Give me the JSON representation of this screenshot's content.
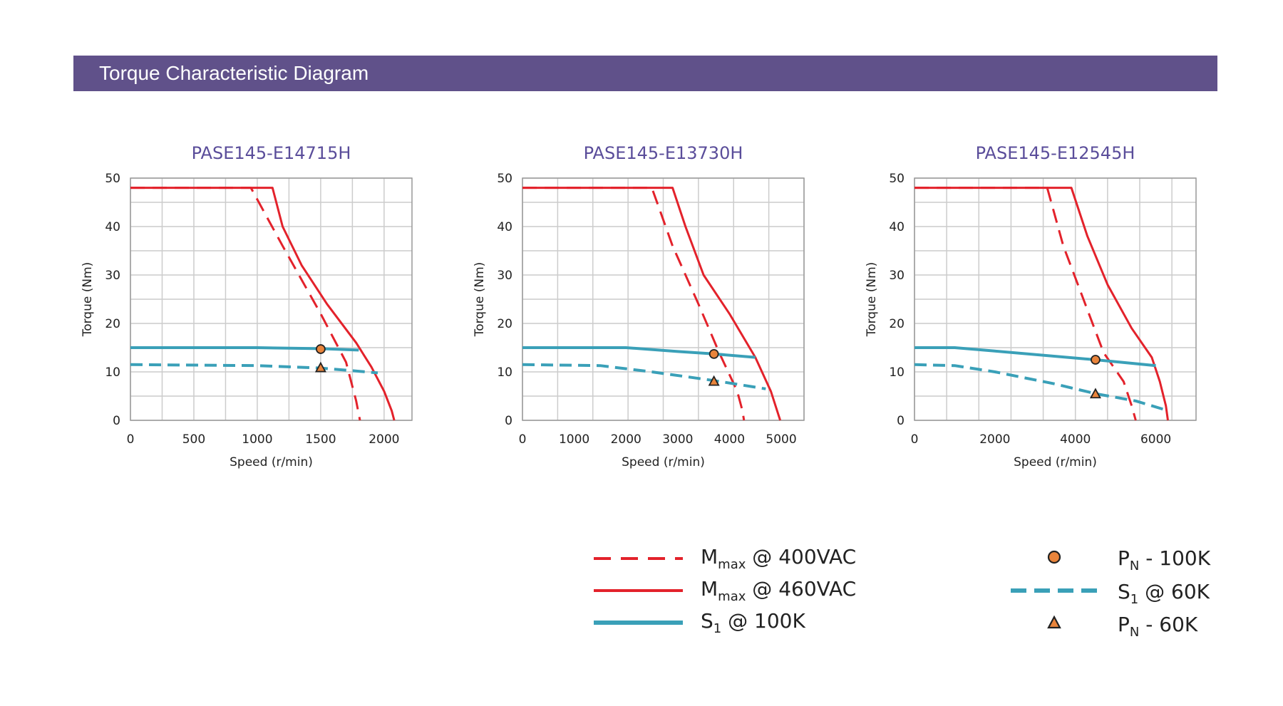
{
  "header": {
    "title": "Torque Characteristic Diagram",
    "color": "#60518a"
  },
  "colors": {
    "mmax": "#e3222b",
    "s1": "#3aa0b8",
    "title": "#5a4d9a",
    "marker_fill": "#e9843b",
    "grid": "#cccccc",
    "axis_text": "#222222"
  },
  "legend": {
    "mmax400": {
      "sym": "M",
      "sub": "max",
      "rest": " @ 400VAC"
    },
    "mmax460": {
      "sym": "M",
      "sub": "max",
      "rest": " @ 460VAC"
    },
    "s1_100k": {
      "sym": "S",
      "sub": "1",
      "rest": " @ 100K"
    },
    "pn_100k": {
      "sym": "P",
      "sub": "N",
      "rest": " - 100K"
    },
    "s1_60k": {
      "sym": "S",
      "sub": "1",
      "rest": " @ 60K"
    },
    "pn_60k": {
      "sym": "P",
      "sub": "N",
      "rest": " - 60K"
    }
  },
  "chart_data": [
    {
      "type": "line",
      "title": "PASE145-E14715H",
      "xlabel": "Speed (r/min)",
      "ylabel": "Torque (Nm)",
      "xlim": [
        0,
        2220
      ],
      "ylim": [
        0,
        50
      ],
      "xticks": [
        0,
        500,
        1000,
        1500,
        2000
      ],
      "yticks": [
        0,
        10,
        20,
        30,
        40,
        50
      ],
      "xgrid_step": 250,
      "ygrid_step": 5,
      "series": [
        {
          "key": "mmax400",
          "style": "dashed-red",
          "points": [
            [
              0,
              48
            ],
            [
              950,
              48
            ],
            [
              1200,
              36
            ],
            [
              1500,
              22
            ],
            [
              1700,
              12
            ],
            [
              1780,
              4
            ],
            [
              1810,
              0
            ]
          ]
        },
        {
          "key": "mmax460",
          "style": "solid-red",
          "points": [
            [
              0,
              48
            ],
            [
              1120,
              48
            ],
            [
              1200,
              40
            ],
            [
              1350,
              32
            ],
            [
              1550,
              24
            ],
            [
              1780,
              16
            ],
            [
              1900,
              11
            ],
            [
              2000,
              6
            ],
            [
              2060,
              2
            ],
            [
              2080,
              0
            ]
          ]
        },
        {
          "key": "s1_100k",
          "style": "solid-blue",
          "points": [
            [
              0,
              15
            ],
            [
              1000,
              15
            ],
            [
              1500,
              14.8
            ],
            [
              1800,
              14.5
            ]
          ]
        },
        {
          "key": "s1_60k",
          "style": "dashed-blue",
          "points": [
            [
              0,
              11.5
            ],
            [
              1000,
              11.3
            ],
            [
              1500,
              10.8
            ],
            [
              1950,
              9.8
            ]
          ]
        }
      ],
      "markers": [
        {
          "key": "pn_100k",
          "shape": "circle",
          "x": 1500,
          "y": 14.7
        },
        {
          "key": "pn_60k",
          "shape": "triangle",
          "x": 1500,
          "y": 10.8
        }
      ]
    },
    {
      "type": "line",
      "title": "PASE145-E13730H",
      "xlabel": "Speed (r/min)",
      "ylabel": "Torque (Nm)",
      "xlim": [
        0,
        5440
      ],
      "ylim": [
        0,
        50
      ],
      "xticks": [
        0,
        1000,
        2000,
        3000,
        4000,
        5000
      ],
      "yticks": [
        0,
        10,
        20,
        30,
        40,
        50
      ],
      "xgrid_step": 680,
      "ygrid_step": 5,
      "series": [
        {
          "key": "mmax400",
          "style": "dashed-red",
          "points": [
            [
              0,
              48
            ],
            [
              2500,
              48
            ],
            [
              2900,
              36
            ],
            [
              3400,
              24
            ],
            [
              3800,
              14
            ],
            [
              4150,
              6
            ],
            [
              4250,
              2
            ],
            [
              4280,
              0
            ]
          ]
        },
        {
          "key": "mmax460",
          "style": "solid-red",
          "points": [
            [
              0,
              48
            ],
            [
              2900,
              48
            ],
            [
              3150,
              40
            ],
            [
              3500,
              30
            ],
            [
              4000,
              22
            ],
            [
              4500,
              13
            ],
            [
              4800,
              6
            ],
            [
              4950,
              1
            ],
            [
              4980,
              0
            ]
          ]
        },
        {
          "key": "s1_100k",
          "style": "solid-blue",
          "points": [
            [
              0,
              15
            ],
            [
              2000,
              15
            ],
            [
              3000,
              14.2
            ],
            [
              3700,
              13.7
            ],
            [
              4500,
              13
            ]
          ]
        },
        {
          "key": "s1_60k",
          "style": "dashed-blue",
          "points": [
            [
              0,
              11.5
            ],
            [
              1500,
              11.3
            ],
            [
              2500,
              10
            ],
            [
              3700,
              8.2
            ],
            [
              4700,
              6.5
            ]
          ]
        }
      ],
      "markers": [
        {
          "key": "pn_100k",
          "shape": "circle",
          "x": 3700,
          "y": 13.7
        },
        {
          "key": "pn_60k",
          "shape": "triangle",
          "x": 3700,
          "y": 8.0
        }
      ]
    },
    {
      "type": "line",
      "title": "PASE145-E12545H",
      "xlabel": "Speed (r/min)",
      "ylabel": "Torque (Nm)",
      "xlim": [
        0,
        7000
      ],
      "ylim": [
        0,
        50
      ],
      "xticks": [
        0,
        2000,
        4000,
        6000
      ],
      "yticks": [
        0,
        10,
        20,
        30,
        40,
        50
      ],
      "xgrid_step": 800,
      "ygrid_step": 5,
      "series": [
        {
          "key": "mmax400",
          "style": "dashed-red",
          "points": [
            [
              0,
              48
            ],
            [
              3300,
              48
            ],
            [
              3700,
              36
            ],
            [
              4200,
              25
            ],
            [
              4700,
              14
            ],
            [
              5200,
              8
            ],
            [
              5400,
              3
            ],
            [
              5500,
              0
            ]
          ]
        },
        {
          "key": "mmax460",
          "style": "solid-red",
          "points": [
            [
              0,
              48
            ],
            [
              3900,
              48
            ],
            [
              4300,
              38
            ],
            [
              4800,
              28
            ],
            [
              5400,
              19
            ],
            [
              5900,
              13
            ],
            [
              6100,
              8
            ],
            [
              6250,
              3
            ],
            [
              6300,
              0
            ]
          ]
        },
        {
          "key": "s1_100k",
          "style": "solid-blue",
          "points": [
            [
              0,
              15
            ],
            [
              1000,
              15
            ],
            [
              2000,
              14.3
            ],
            [
              4500,
              12.5
            ],
            [
              6000,
              11.3
            ]
          ]
        },
        {
          "key": "s1_60k",
          "style": "dashed-blue",
          "points": [
            [
              0,
              11.5
            ],
            [
              1000,
              11.3
            ],
            [
              2000,
              10
            ],
            [
              3500,
              7.5
            ],
            [
              4500,
              5.5
            ],
            [
              5500,
              4
            ],
            [
              6300,
              2
            ]
          ]
        }
      ],
      "markers": [
        {
          "key": "pn_100k",
          "shape": "circle",
          "x": 4500,
          "y": 12.5
        },
        {
          "key": "pn_60k",
          "shape": "triangle",
          "x": 4500,
          "y": 5.4
        }
      ]
    }
  ]
}
